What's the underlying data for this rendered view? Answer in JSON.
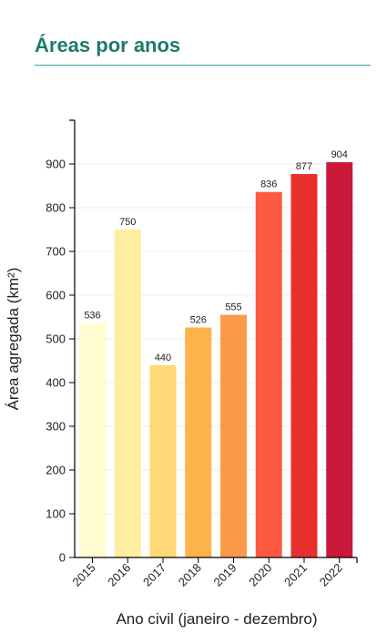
{
  "header": {
    "title": "Áreas por anos"
  },
  "chart_data": {
    "type": "bar",
    "title": "Áreas por anos",
    "xlabel": "Ano civil (janeiro - dezembro)",
    "ylabel": "Área agregada (km²)",
    "categories": [
      "2015",
      "2016",
      "2017",
      "2018",
      "2019",
      "2020",
      "2021",
      "2022"
    ],
    "values": [
      536,
      750,
      440,
      526,
      555,
      836,
      877,
      904
    ],
    "colors": [
      "#fffdd0",
      "#ffeda0",
      "#fed976",
      "#feb24c",
      "#fd9a4a",
      "#fc5b3f",
      "#e8302e",
      "#c8193a"
    ],
    "ylim": [
      0,
      1000
    ],
    "yticks": [
      0,
      100,
      200,
      300,
      400,
      500,
      600,
      700,
      800,
      900
    ],
    "grid": true,
    "legend": "none"
  }
}
